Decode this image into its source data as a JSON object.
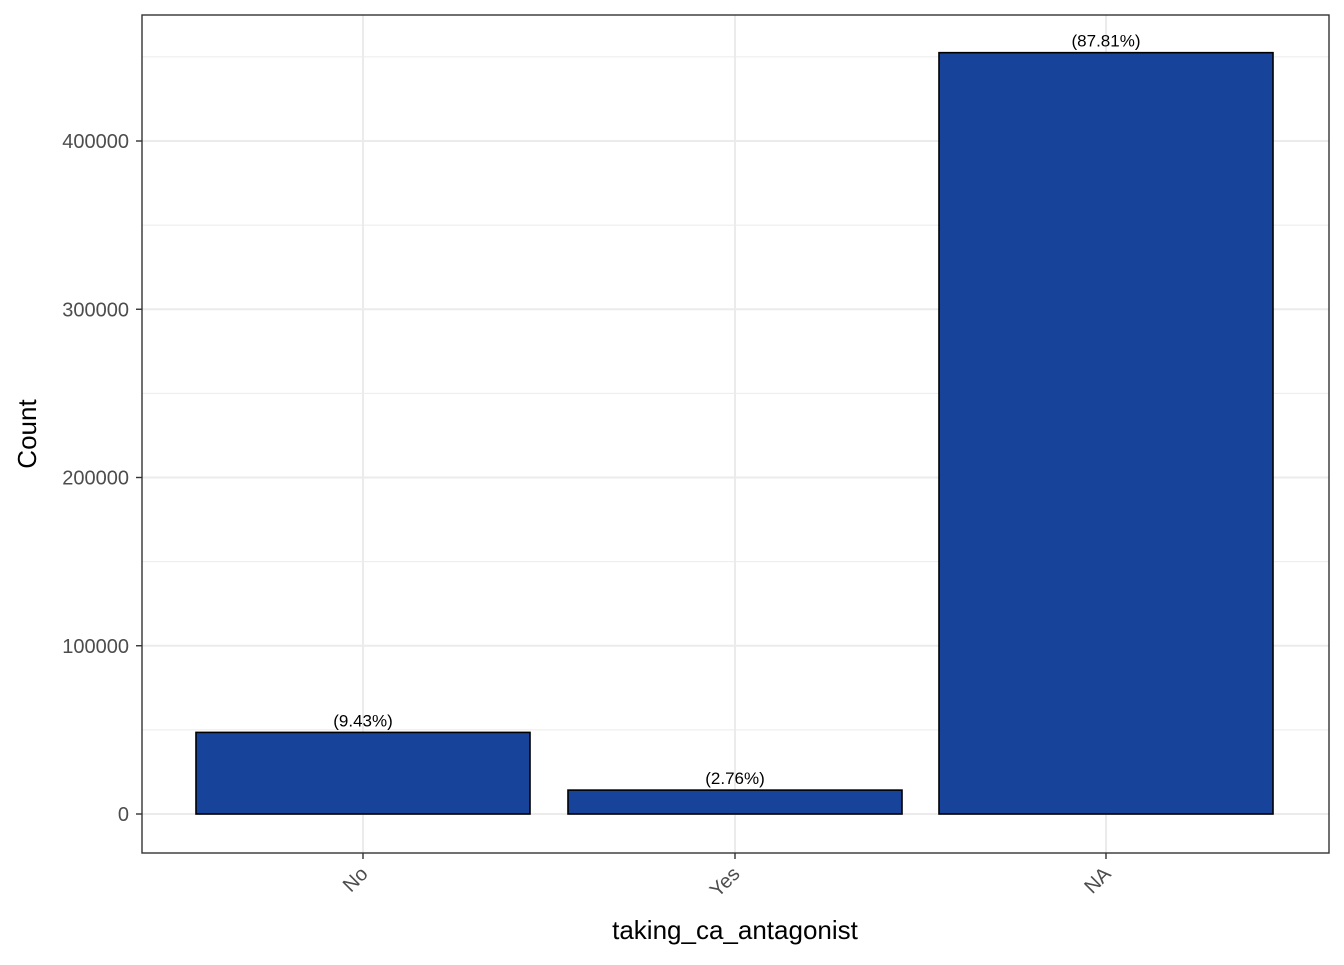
{
  "chart_data": {
    "type": "bar",
    "categories": [
      "No",
      "Yes",
      "NA"
    ],
    "values": [
      48500,
      14200,
      452500
    ],
    "labels": [
      "(9.43%)",
      "(2.76%)",
      "(87.81%)"
    ],
    "title": "",
    "xlabel": "taking_ca_antagonist",
    "ylabel": "Count",
    "ylim": [
      -23000,
      475000
    ],
    "yticks": [
      0,
      100000,
      200000,
      300000,
      400000
    ],
    "ytick_labels": [
      "0",
      "100000",
      "200000",
      "300000",
      "400000"
    ],
    "grid": true,
    "legend": "none",
    "bar_color": "#17449A",
    "bar_edge_color": "#000000"
  }
}
